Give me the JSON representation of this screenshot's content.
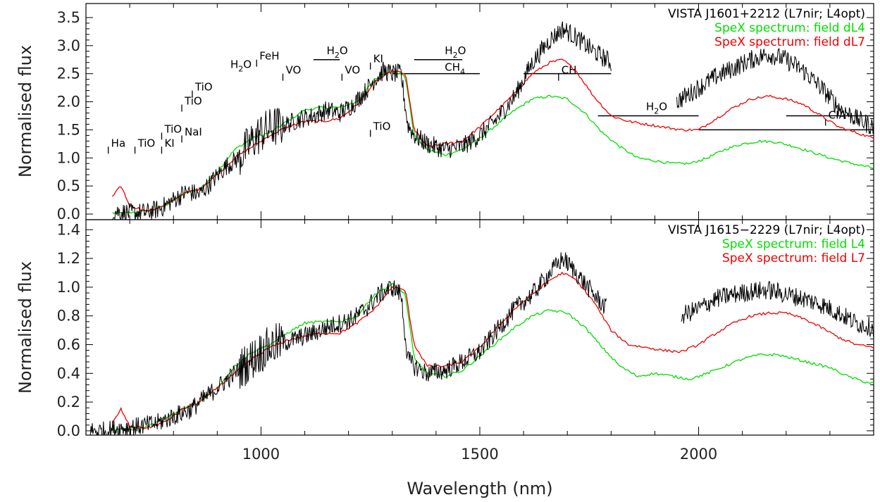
{
  "chart_data": [
    {
      "type": "line",
      "title": "",
      "xlabel": "",
      "ylabel": "Normalised flux",
      "xlim": [
        600,
        2400
      ],
      "ylim": [
        -0.1,
        3.75
      ],
      "yticks": [
        0.0,
        0.5,
        1.0,
        1.5,
        2.0,
        2.5,
        3.0,
        3.5
      ],
      "ytick_labels": [
        "0.0",
        "0.5",
        "1.0",
        "1.5",
        "2.0",
        "2.5",
        "3.0",
        "3.5"
      ],
      "grid": false,
      "legend_position": "top-right",
      "legend": [
        {
          "text": "VISTA J1601+2212 (L7nir; L4opt)",
          "color": "#000000"
        },
        {
          "text": "SpeX spectrum: field dL4",
          "color": "#00dd00"
        },
        {
          "text": "SpeX spectrum: field dL7",
          "color": "#ee0000"
        }
      ],
      "series": [
        {
          "key": "target",
          "color": "#000000",
          "x": [
            660,
            700,
            740,
            770,
            800,
            830,
            860,
            890,
            920,
            950,
            980,
            1000,
            1030,
            1060,
            1090,
            1120,
            1150,
            1180,
            1210,
            1240,
            1260,
            1280,
            1300,
            1320,
            1335,
            1350,
            1380,
            1420,
            1460,
            1500,
            1540,
            1580,
            1620,
            1660,
            1690,
            1720,
            1760,
            1800
          ],
          "y": [
            0.05,
            0.02,
            0.03,
            0.1,
            0.25,
            0.4,
            0.35,
            0.6,
            0.85,
            1.0,
            1.3,
            1.45,
            1.55,
            1.6,
            1.7,
            1.75,
            1.85,
            1.8,
            1.95,
            2.2,
            2.4,
            2.55,
            2.5,
            2.5,
            1.6,
            1.4,
            1.25,
            1.15,
            1.2,
            1.4,
            1.7,
            2.1,
            2.7,
            3.1,
            3.3,
            3.15,
            2.9,
            2.7
          ],
          "x2": [
            1950,
            1980,
            2010,
            2040,
            2080,
            2120,
            2160,
            2200,
            2240,
            2280,
            2320,
            2360,
            2400
          ],
          "y2": [
            2.0,
            2.15,
            2.3,
            2.45,
            2.6,
            2.75,
            2.85,
            2.75,
            2.55,
            2.25,
            1.9,
            1.7,
            1.55
          ]
        },
        {
          "key": "dL4",
          "color": "#00dd00",
          "x": [
            660,
            700,
            740,
            780,
            820,
            860,
            900,
            940,
            980,
            1020,
            1060,
            1100,
            1140,
            1180,
            1220,
            1260,
            1300,
            1330,
            1350,
            1380,
            1420,
            1460,
            1500,
            1540,
            1580,
            1620,
            1660,
            1700,
            1740,
            1780,
            1820,
            1860,
            1900,
            1940,
            1980,
            2020,
            2060,
            2100,
            2140,
            2180,
            2220,
            2260,
            2300,
            2340,
            2380,
            2400
          ],
          "y": [
            0.02,
            0.02,
            0.05,
            0.15,
            0.35,
            0.45,
            0.75,
            1.15,
            1.35,
            1.45,
            1.65,
            1.85,
            1.9,
            1.9,
            2.0,
            2.4,
            2.55,
            2.45,
            1.4,
            1.15,
            1.05,
            1.15,
            1.35,
            1.6,
            1.85,
            2.05,
            2.1,
            2.05,
            1.8,
            1.45,
            1.2,
            1.0,
            0.95,
            0.9,
            0.9,
            1.0,
            1.15,
            1.25,
            1.3,
            1.28,
            1.2,
            1.1,
            1.0,
            0.92,
            0.85,
            0.82
          ]
        },
        {
          "key": "dL7",
          "color": "#ee0000",
          "x": [
            660,
            680,
            700,
            740,
            780,
            820,
            860,
            900,
            940,
            980,
            1020,
            1060,
            1100,
            1140,
            1180,
            1220,
            1260,
            1300,
            1330,
            1350,
            1380,
            1420,
            1460,
            1500,
            1540,
            1580,
            1620,
            1660,
            1690,
            1720,
            1760,
            1800,
            1840,
            1880,
            1920,
            1960,
            2000,
            2040,
            2080,
            2120,
            2160,
            2200,
            2240,
            2280,
            2320,
            2360,
            2400
          ],
          "y": [
            0.3,
            0.5,
            0.15,
            0.05,
            0.15,
            0.35,
            0.45,
            0.7,
            1.0,
            1.2,
            1.4,
            1.55,
            1.65,
            1.65,
            1.7,
            1.95,
            2.35,
            2.55,
            2.5,
            1.5,
            1.2,
            1.25,
            1.3,
            1.55,
            1.85,
            2.15,
            2.5,
            2.7,
            2.75,
            2.55,
            2.1,
            1.75,
            1.65,
            1.6,
            1.55,
            1.5,
            1.5,
            1.7,
            1.9,
            2.05,
            2.1,
            2.05,
            1.95,
            1.75,
            1.55,
            1.45,
            1.35
          ]
        }
      ],
      "annotations": [
        {
          "text": "Ha",
          "x": 651,
          "y": 1.2
        },
        {
          "text": "TiO",
          "x": 712,
          "y": 1.2
        },
        {
          "text": "KI",
          "x": 773,
          "y": 1.2
        },
        {
          "text": "TiO",
          "x": 773,
          "y": 1.45
        },
        {
          "text": "NaI",
          "x": 819,
          "y": 1.4
        },
        {
          "text": "TiO",
          "x": 819,
          "y": 1.95
        },
        {
          "text": "TiO",
          "x": 843,
          "y": 2.2
        },
        {
          "text": "FeH",
          "x": 990,
          "y": 2.75
        },
        {
          "text": "VO",
          "x": 1050,
          "y": 2.5
        },
        {
          "text": "VO",
          "x": 1185,
          "y": 2.5
        },
        {
          "text": "KI",
          "x": 1250,
          "y": 2.7
        },
        {
          "text": "TiO",
          "x": 1250,
          "y": 1.5
        },
        {
          "text": "CH",
          "x": 1680,
          "y": 2.5
        },
        {
          "text": "CIA",
          "x": 2290,
          "y": 1.7
        }
      ],
      "chem_labels": [
        {
          "base": "H",
          "sub": "2",
          "tail": "O",
          "x": 930,
          "y": 2.55
        },
        {
          "base": "H",
          "sub": "2",
          "tail": "O",
          "x": 1150,
          "y": 2.8
        },
        {
          "base": "H",
          "sub": "2",
          "tail": "O",
          "x": 1420,
          "y": 2.8
        },
        {
          "base": "CH",
          "sub": "4",
          "tail": "",
          "x": 1420,
          "y": 2.5
        },
        {
          "base": "H",
          "sub": "2",
          "tail": "O",
          "x": 1880,
          "y": 1.8
        }
      ],
      "bands": [
        {
          "x1": 1120,
          "x2": 1180,
          "y": 2.75
        },
        {
          "x1": 1350,
          "x2": 1460,
          "y": 2.75
        },
        {
          "x1": 1300,
          "x2": 1500,
          "y": 2.5
        },
        {
          "x1": 1600,
          "x2": 1800,
          "y": 2.5
        },
        {
          "x1": 1770,
          "x2": 2000,
          "y": 1.75
        },
        {
          "x1": 2000,
          "x2": 2400,
          "y": 1.5
        },
        {
          "x1": 2200,
          "x2": 2400,
          "y": 1.75
        }
      ]
    },
    {
      "type": "line",
      "title": "",
      "xlabel": "Wavelength (nm)",
      "ylabel": "Normalised flux",
      "xlim": [
        600,
        2400
      ],
      "ylim": [
        -0.03,
        1.47
      ],
      "yticks": [
        0.0,
        0.2,
        0.4,
        0.6,
        0.8,
        1.0,
        1.2,
        1.4
      ],
      "ytick_labels": [
        "0.0",
        "0.2",
        "0.4",
        "0.6",
        "0.8",
        "1.0",
        "1.2",
        "1.4"
      ],
      "xticks": [
        1000,
        1500,
        2000
      ],
      "xtick_labels": [
        "1000",
        "1500",
        "2000"
      ],
      "grid": false,
      "legend_position": "top-right",
      "legend": [
        {
          "text": "VISTA J1615−2229 (L7nir; L4opt)",
          "color": "#000000"
        },
        {
          "text": "SpeX spectrum: field L4",
          "color": "#00dd00"
        },
        {
          "text": "SpeX spectrum: field L7",
          "color": "#ee0000"
        }
      ],
      "series": [
        {
          "key": "target",
          "color": "#000000",
          "x": [
            610,
            640,
            680,
            720,
            760,
            800,
            840,
            880,
            920,
            960,
            1000,
            1030,
            1060,
            1090,
            1120,
            1150,
            1180,
            1210,
            1240,
            1270,
            1300,
            1320,
            1335,
            1350,
            1380,
            1420,
            1460,
            1500,
            1540,
            1580,
            1620,
            1660,
            1690,
            1720,
            1760,
            1790
          ],
          "y": [
            0.0,
            0.0,
            0.02,
            0.03,
            0.05,
            0.1,
            0.15,
            0.25,
            0.35,
            0.45,
            0.55,
            0.6,
            0.62,
            0.65,
            0.68,
            0.72,
            0.75,
            0.78,
            0.85,
            0.95,
            1.0,
            0.95,
            0.5,
            0.45,
            0.4,
            0.42,
            0.48,
            0.55,
            0.7,
            0.85,
            0.95,
            1.1,
            1.2,
            1.1,
            0.95,
            0.85
          ],
          "x2": [
            1960,
            2000,
            2040,
            2080,
            2120,
            2160,
            2200,
            2240,
            2280,
            2320,
            2360,
            2400
          ],
          "y2": [
            0.8,
            0.85,
            0.92,
            0.95,
            0.97,
            0.98,
            0.95,
            0.92,
            0.88,
            0.82,
            0.75,
            0.72
          ]
        },
        {
          "key": "L4",
          "color": "#00dd00",
          "x": [
            660,
            700,
            740,
            780,
            820,
            860,
            900,
            940,
            980,
            1020,
            1060,
            1100,
            1140,
            1180,
            1220,
            1260,
            1300,
            1330,
            1350,
            1380,
            1420,
            1460,
            1500,
            1540,
            1580,
            1620,
            1660,
            1700,
            1740,
            1780,
            1820,
            1860,
            1900,
            1940,
            1980,
            2020,
            2060,
            2100,
            2140,
            2180,
            2220,
            2260,
            2300,
            2340,
            2380,
            2400
          ],
          "y": [
            0.01,
            0.01,
            0.03,
            0.08,
            0.15,
            0.2,
            0.3,
            0.45,
            0.55,
            0.6,
            0.68,
            0.75,
            0.76,
            0.76,
            0.8,
            0.95,
            1.02,
            0.95,
            0.5,
            0.4,
            0.38,
            0.42,
            0.52,
            0.62,
            0.72,
            0.8,
            0.84,
            0.82,
            0.72,
            0.58,
            0.45,
            0.38,
            0.4,
            0.38,
            0.36,
            0.4,
            0.45,
            0.5,
            0.53,
            0.53,
            0.5,
            0.47,
            0.44,
            0.38,
            0.34,
            0.33
          ]
        },
        {
          "key": "L7",
          "color": "#ee0000",
          "x": [
            660,
            680,
            700,
            740,
            780,
            820,
            860,
            900,
            940,
            980,
            1020,
            1060,
            1100,
            1140,
            1180,
            1220,
            1260,
            1300,
            1330,
            1350,
            1380,
            1420,
            1460,
            1500,
            1540,
            1580,
            1620,
            1660,
            1690,
            1720,
            1760,
            1800,
            1840,
            1880,
            1920,
            1960,
            2000,
            2040,
            2080,
            2120,
            2160,
            2200,
            2240,
            2280,
            2320,
            2360,
            2400
          ],
          "y": [
            0.05,
            0.15,
            0.03,
            0.02,
            0.06,
            0.15,
            0.2,
            0.3,
            0.4,
            0.5,
            0.58,
            0.63,
            0.66,
            0.68,
            0.68,
            0.75,
            0.85,
            1.0,
            0.98,
            0.6,
            0.45,
            0.45,
            0.48,
            0.58,
            0.72,
            0.85,
            0.95,
            1.05,
            1.1,
            1.05,
            0.9,
            0.7,
            0.6,
            0.58,
            0.56,
            0.55,
            0.6,
            0.68,
            0.75,
            0.8,
            0.82,
            0.82,
            0.78,
            0.72,
            0.65,
            0.6,
            0.58
          ]
        }
      ]
    }
  ]
}
